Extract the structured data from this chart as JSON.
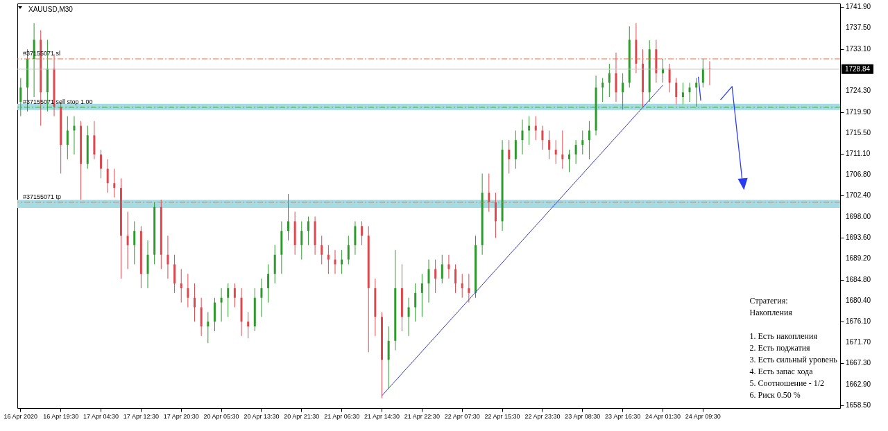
{
  "chart_data": {
    "type": "candlestick",
    "title": "XAUUSD,M30",
    "categories": [
      "16 Apr 2020",
      null,
      null,
      null,
      null,
      null,
      "16 Apr 19:30",
      null,
      null,
      null,
      null,
      null,
      "17 Apr 04:30",
      null,
      null,
      null,
      null,
      null,
      "17 Apr 12:30",
      null,
      null,
      null,
      null,
      null,
      "17 Apr 20:30",
      null,
      null,
      null,
      null,
      null,
      "20 Apr 05:30",
      null,
      null,
      null,
      null,
      null,
      "20 Apr 13:30",
      null,
      null,
      null,
      null,
      null,
      "20 Apr 21:30",
      null,
      null,
      null,
      null,
      null,
      "21 Apr 06:30",
      null,
      null,
      null,
      null,
      null,
      "21 Apr 14:30",
      null,
      null,
      null,
      null,
      null,
      "21 Apr 22:30",
      null,
      null,
      null,
      null,
      null,
      "22 Apr 07:30",
      null,
      null,
      null,
      null,
      null,
      "22 Apr 15:30",
      null,
      null,
      null,
      null,
      null,
      "22 Apr 23:30",
      null,
      null,
      null,
      null,
      null,
      "23 Apr 08:30",
      null,
      null,
      null,
      null,
      null,
      "23 Apr 16:30",
      null,
      null,
      null,
      null,
      null,
      "24 Apr 01:30",
      null,
      null,
      null,
      null,
      null,
      "24 Apr 09:30",
      null,
      null,
      null,
      null,
      null,
      null,
      null,
      null,
      null,
      null,
      null,
      null,
      null,
      null,
      null,
      null,
      null,
      null,
      null,
      null
    ],
    "ohlc": [
      [
        1722,
        1727,
        1719,
        1725
      ],
      [
        1725,
        1733,
        1720,
        1731
      ],
      [
        1731,
        1738.5,
        1723,
        1735
      ],
      [
        1735,
        1737,
        1717,
        1724
      ],
      [
        1724,
        1735,
        1720,
        1729
      ],
      [
        1729,
        1732,
        1719,
        1721
      ],
      [
        1721,
        1722,
        1707,
        1713
      ],
      [
        1713,
        1719,
        1710,
        1716
      ],
      [
        1716,
        1719,
        1711,
        1717
      ],
      [
        1717,
        1718,
        1701.5,
        1709
      ],
      [
        1709,
        1717,
        1708,
        1715
      ],
      [
        1715,
        1718,
        1710,
        1711
      ],
      [
        1711,
        1712,
        1706,
        1708
      ],
      [
        1708,
        1710,
        1703,
        1705
      ],
      [
        1705,
        1708,
        1702,
        1704
      ],
      [
        1704,
        1706,
        1685,
        1694
      ],
      [
        1694,
        1699,
        1687,
        1692
      ],
      [
        1692,
        1697,
        1688,
        1695
      ],
      [
        1695,
        1696,
        1683,
        1686
      ],
      [
        1686,
        1693,
        1683,
        1690
      ],
      [
        1690,
        1701,
        1688,
        1700
      ],
      [
        1700,
        1701.5,
        1687,
        1690
      ],
      [
        1690,
        1694,
        1685,
        1688
      ],
      [
        1688,
        1690,
        1682,
        1684
      ],
      [
        1684,
        1687,
        1680,
        1683
      ],
      [
        1683,
        1686,
        1679,
        1681
      ],
      [
        1681,
        1684,
        1676,
        1679
      ],
      [
        1679,
        1681,
        1673,
        1675
      ],
      [
        1675,
        1678,
        1671.5,
        1676
      ],
      [
        1676,
        1681,
        1674,
        1680
      ],
      [
        1680,
        1683,
        1676,
        1681
      ],
      [
        1681,
        1684,
        1677,
        1683
      ],
      [
        1683,
        1684,
        1679,
        1681
      ],
      [
        1681,
        1683,
        1673,
        1676
      ],
      [
        1676,
        1678,
        1672.5,
        1675
      ],
      [
        1675,
        1683,
        1674,
        1681
      ],
      [
        1681,
        1685,
        1677,
        1683
      ],
      [
        1683,
        1688,
        1680,
        1686
      ],
      [
        1686,
        1692,
        1684,
        1690
      ],
      [
        1690,
        1697,
        1686,
        1695
      ],
      [
        1695,
        1702.7,
        1693,
        1697
      ],
      [
        1697,
        1699,
        1690,
        1692
      ],
      [
        1692,
        1697,
        1689,
        1695
      ],
      [
        1695,
        1698,
        1692,
        1697
      ],
      [
        1697,
        1698,
        1690,
        1692
      ],
      [
        1692,
        1694,
        1688,
        1690
      ],
      [
        1690,
        1692,
        1686,
        1689
      ],
      [
        1689,
        1691,
        1686,
        1688
      ],
      [
        1688,
        1691,
        1686,
        1689
      ],
      [
        1689,
        1694,
        1688,
        1692
      ],
      [
        1692,
        1697,
        1690,
        1696
      ],
      [
        1696,
        1697,
        1692,
        1694
      ],
      [
        1694,
        1696,
        1669.6,
        1683
      ],
      [
        1683,
        1685,
        1673,
        1677
      ],
      [
        1677,
        1678,
        1660,
        1668
      ],
      [
        1668,
        1675,
        1662,
        1672
      ],
      [
        1672,
        1691,
        1670,
        1683
      ],
      [
        1683,
        1688,
        1674,
        1677
      ],
      [
        1677,
        1681,
        1673,
        1679
      ],
      [
        1679,
        1684,
        1676,
        1682
      ],
      [
        1682,
        1686,
        1677,
        1684
      ],
      [
        1684,
        1689,
        1680,
        1687
      ],
      [
        1687,
        1689,
        1682,
        1685
      ],
      [
        1685,
        1690,
        1684,
        1688
      ],
      [
        1688,
        1690,
        1685,
        1687
      ],
      [
        1687,
        1688,
        1682,
        1684
      ],
      [
        1684,
        1686,
        1681,
        1683
      ],
      [
        1683,
        1686,
        1680,
        1682
      ],
      [
        1682,
        1694,
        1681,
        1692
      ],
      [
        1692,
        1707,
        1690,
        1703
      ],
      [
        1703,
        1707,
        1699,
        1701
      ],
      [
        1701,
        1703,
        1693.5,
        1697
      ],
      [
        1697,
        1714,
        1695,
        1712
      ],
      [
        1712,
        1714,
        1707,
        1710
      ],
      [
        1710,
        1716,
        1708,
        1714
      ],
      [
        1714,
        1718.3,
        1711,
        1716
      ],
      [
        1716,
        1719,
        1713,
        1717
      ],
      [
        1717,
        1719,
        1714,
        1716
      ],
      [
        1716,
        1717,
        1712,
        1714
      ],
      [
        1714,
        1716,
        1710,
        1712
      ],
      [
        1712,
        1714,
        1709,
        1711
      ],
      [
        1711,
        1716,
        1708,
        1710
      ],
      [
        1710,
        1712,
        1707.3,
        1711
      ],
      [
        1711,
        1714,
        1709,
        1713
      ],
      [
        1713,
        1716,
        1711,
        1714
      ],
      [
        1714,
        1718,
        1710,
        1716
      ],
      [
        1716,
        1727.5,
        1715,
        1725
      ],
      [
        1725,
        1727,
        1722,
        1726
      ],
      [
        1726,
        1730,
        1723,
        1728
      ],
      [
        1728,
        1732.3,
        1722,
        1724
      ],
      [
        1724,
        1728,
        1720.4,
        1726
      ],
      [
        1726,
        1737.8,
        1725,
        1735
      ],
      [
        1735,
        1738.5,
        1728,
        1730
      ],
      [
        1730,
        1733,
        1720.9,
        1724
      ],
      [
        1724,
        1734.9,
        1722,
        1733
      ],
      [
        1733,
        1735,
        1726,
        1728
      ],
      [
        1728,
        1731,
        1726,
        1729
      ],
      [
        1729,
        1730,
        1724,
        1726
      ],
      [
        1726,
        1727,
        1721.5,
        1723
      ],
      [
        1723,
        1726,
        1721.5,
        1724
      ],
      [
        1724,
        1726,
        1722,
        1725
      ],
      [
        1725,
        1727,
        1721,
        1726
      ],
      [
        1726,
        1731,
        1725,
        1729
      ],
      [
        1729,
        1730.5,
        1725.5,
        1728.84
      ],
      null,
      null,
      null,
      null,
      null,
      null,
      null,
      null,
      null,
      null,
      null,
      null,
      null,
      null,
      null,
      null,
      null,
      null,
      null
    ],
    "colors": [
      "#2e9a2e",
      "#2e9a2e",
      "#2e9a2e",
      "#e0474c",
      "#2e9a2e",
      "#e0474c",
      "#e0474c",
      "#2e9a2e",
      "#2e9a2e",
      "#e0474c",
      "#2e9a2e",
      "#e0474c",
      "#e0474c",
      "#e0474c",
      "#e0474c",
      "#e0474c",
      "#e0474c",
      "#2e9a2e",
      "#e0474c",
      "#2e9a2e",
      "#2e9a2e",
      "#e0474c",
      "#e0474c",
      "#e0474c",
      "#e0474c",
      "#e0474c",
      "#e0474c",
      "#e0474c",
      "#2e9a2e",
      "#2e9a2e",
      "#2e9a2e",
      "#2e9a2e",
      "#e0474c",
      "#e0474c",
      "#e0474c",
      "#2e9a2e",
      "#2e9a2e",
      "#2e9a2e",
      "#2e9a2e",
      "#2e9a2e",
      "#2e9a2e",
      "#e0474c",
      "#2e9a2e",
      "#2e9a2e",
      "#e0474c",
      "#e0474c",
      "#e0474c",
      "#e0474c",
      "#2e9a2e",
      "#2e9a2e",
      "#2e9a2e",
      "#e0474c",
      "#e0474c",
      "#e0474c",
      "#e0474c",
      "#2e9a2e",
      "#2e9a2e",
      "#e0474c",
      "#2e9a2e",
      "#2e9a2e",
      "#2e9a2e",
      "#2e9a2e",
      "#e0474c",
      "#2e9a2e",
      "#e0474c",
      "#e0474c",
      "#e0474c",
      "#e0474c",
      "#2e9a2e",
      "#2e9a2e",
      "#e0474c",
      "#e0474c",
      "#2e9a2e",
      "#e0474c",
      "#2e9a2e",
      "#2e9a2e",
      "#2e9a2e",
      "#e0474c",
      "#e0474c",
      "#e0474c",
      "#e0474c",
      "#e0474c",
      "#2e9a2e",
      "#2e9a2e",
      "#2e9a2e",
      "#2e9a2e",
      "#2e9a2e",
      "#2e9a2e",
      "#2e9a2e",
      "#e0474c",
      "#2e9a2e",
      "#2e9a2e",
      "#e0474c",
      "#e0474c",
      "#2e9a2e",
      "#e0474c",
      "#2e9a2e",
      "#e0474c",
      "#e0474c",
      "#2e9a2e",
      "#2e9a2e",
      "#2e9a2e",
      "#2e9a2e",
      "#e0474c",
      null,
      null,
      null,
      null,
      null,
      null,
      null,
      null,
      null,
      null,
      null,
      null,
      null,
      null,
      null,
      null,
      null,
      null,
      null
    ],
    "series": [
      {
        "type": "line",
        "color": "#3a3acc",
        "x": [
          "21 Apr 14:30",
          "24 Apr 01:30"
        ],
        "values": [
          1660.5,
          1725.5
        ]
      }
    ],
    "ylim": [
      1657.9,
      1742.6
    ],
    "yticks": [
      {
        "value": 1741.9,
        "label": "1741.90"
      },
      {
        "value": 1737.5,
        "label": "1737.50"
      },
      {
        "value": 1733.1,
        "label": "1733.10"
      },
      {
        "value": 1724.3,
        "label": "1724.30"
      },
      {
        "value": 1719.9,
        "label": "1719.90"
      },
      {
        "value": 1715.5,
        "label": "1715.50"
      },
      {
        "value": 1711.1,
        "label": "1711.10"
      },
      {
        "value": 1706.8,
        "label": "1706.80"
      },
      {
        "value": 1702.4,
        "label": "1702.40"
      },
      {
        "value": 1698,
        "label": "1698.00"
      },
      {
        "value": 1693.6,
        "label": "1693.60"
      },
      {
        "value": 1689.2,
        "label": "1689.20"
      },
      {
        "value": 1684.8,
        "label": "1684.80"
      },
      {
        "value": 1680.4,
        "label": "1680.40"
      },
      {
        "value": 1676.1,
        "label": "1676.10"
      },
      {
        "value": 1671.7,
        "label": "1671.70"
      },
      {
        "value": 1667.3,
        "label": "1667.30"
      },
      {
        "value": 1662.9,
        "label": "1662.90"
      },
      {
        "value": 1658.5,
        "label": "1658.50"
      }
    ],
    "ref_lines": [
      {
        "axis": "y",
        "value": 1731,
        "label": "#37155071 sl",
        "color": "#f07040",
        "line_style": "dashed"
      },
      {
        "axis": "y",
        "value": 1728.84,
        "label": "1728.84",
        "color": "#c0c0c0",
        "line_style": "solid"
      },
      {
        "axis": "y",
        "value": 1720.9,
        "label": "#37155071 sell stop 1.00",
        "color": "#3a963a",
        "line_style": "dashed"
      },
      {
        "axis": "y",
        "value": 1701,
        "label": "#37155071 tp",
        "color": "#f07040",
        "line_style": "dashed"
      }
    ],
    "bands": [
      {
        "axis": "y",
        "from": 1720.3,
        "to": 1721.6,
        "color": "#a5dbe3"
      },
      {
        "axis": "y",
        "from": 1699.8,
        "to": 1701.5,
        "color": "#a5dbe3"
      }
    ],
    "annotations": [
      "Стратегия:",
      "Накопления",
      "1. Есть накопления",
      "2. Есть поджатия",
      "3. Есть сильный уровень",
      "4. Есть запас хода",
      "5. Соотношение - 1/2",
      "6. Риск 0.50 %"
    ]
  }
}
